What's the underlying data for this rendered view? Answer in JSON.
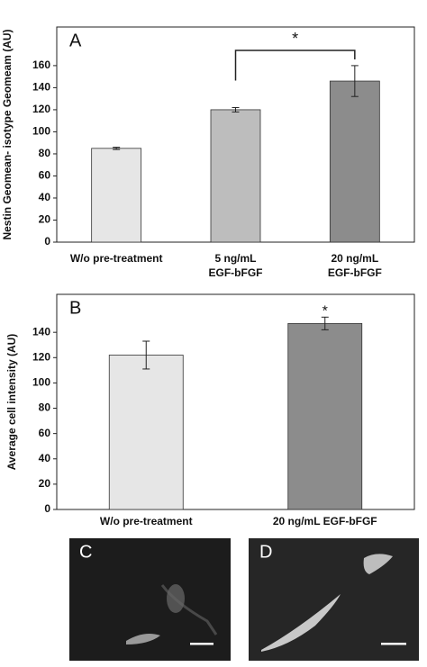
{
  "chart_data": [
    {
      "type": "bar",
      "panel_label": "A",
      "y_label": "Nestin Geomean- isotype Geomeam (AU)",
      "categories": [
        [
          "W/o pre-treatment"
        ],
        [
          "5 ng/mL",
          "EGF-bFGF"
        ],
        [
          "20 ng/mL",
          "EGF-bFGF"
        ]
      ],
      "values": [
        85,
        120,
        146
      ],
      "errors": [
        1,
        2,
        14
      ],
      "colors": [
        "#e6e6e6",
        "#bdbdbd",
        "#8c8c8c"
      ],
      "ylim": [
        0,
        195
      ],
      "yticks": [
        0,
        20,
        40,
        60,
        80,
        100,
        120,
        140,
        160
      ],
      "significance": {
        "label": "*",
        "between": [
          1,
          2
        ]
      }
    },
    {
      "type": "bar",
      "panel_label": "B",
      "y_label": "Average cell intensity (AU)",
      "categories": [
        [
          "W/o pre-treatment"
        ],
        [
          "20 ng/mL EGF-bFGF"
        ]
      ],
      "values": [
        122,
        147
      ],
      "errors": [
        11,
        5
      ],
      "colors": [
        "#e6e6e6",
        "#8c8c8c"
      ],
      "ylim": [
        0,
        170
      ],
      "yticks": [
        0,
        20,
        40,
        60,
        80,
        100,
        120,
        140
      ],
      "annotations": [
        {
          "label": "*",
          "index": 1
        }
      ]
    }
  ],
  "panels": [
    {
      "label": "C"
    },
    {
      "label": "D"
    }
  ]
}
